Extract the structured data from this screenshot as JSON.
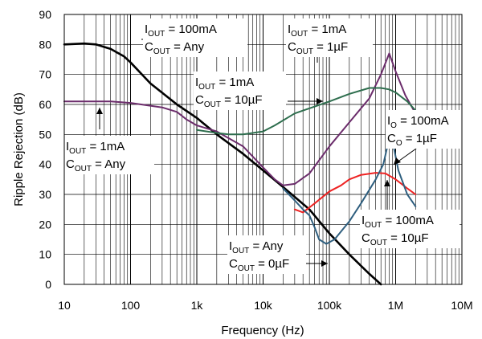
{
  "chart_data": {
    "type": "line",
    "xlabel": "Frequency (Hz)",
    "ylabel": "Ripple Rejection (dB)",
    "xscale": "log",
    "xlim": [
      10,
      10000000
    ],
    "ylim": [
      0,
      90
    ],
    "grid": true,
    "x_tick_labels": [
      "10",
      "100",
      "1k",
      "10k",
      "100k",
      "1M",
      "10M"
    ],
    "y_tick_values": [
      0,
      10,
      20,
      30,
      40,
      50,
      60,
      70,
      80,
      90
    ],
    "series": [
      {
        "color": "#000000",
        "points": [
          [
            10,
            80
          ],
          [
            20,
            80.3
          ],
          [
            30,
            80
          ],
          [
            50,
            78.5
          ],
          [
            80,
            76
          ],
          [
            100,
            74
          ],
          [
            200,
            67
          ],
          [
            500,
            60
          ],
          [
            1000,
            55.5
          ],
          [
            2000,
            50
          ],
          [
            5000,
            43.5
          ],
          [
            10000,
            38
          ],
          [
            20000,
            32.5
          ],
          [
            50000,
            25
          ],
          [
            100000,
            17
          ],
          [
            200000,
            10
          ],
          [
            400000,
            3.5
          ],
          [
            600000,
            0
          ]
        ]
      },
      {
        "color": "#6b2c6b",
        "points": [
          [
            10,
            61
          ],
          [
            50,
            61
          ],
          [
            100,
            60.5
          ],
          [
            300,
            59
          ],
          [
            500,
            57.5
          ],
          [
            700,
            55
          ],
          [
            1000,
            53
          ],
          [
            2000,
            51
          ],
          [
            5000,
            46
          ],
          [
            10000,
            39
          ],
          [
            15000,
            35
          ],
          [
            20000,
            33
          ],
          [
            30000,
            33.5
          ],
          [
            50000,
            37
          ],
          [
            100000,
            46
          ],
          [
            200000,
            54
          ],
          [
            400000,
            62
          ],
          [
            600000,
            70
          ],
          [
            800000,
            77
          ],
          [
            1000000,
            71
          ],
          [
            1400000,
            63
          ],
          [
            2000000,
            57
          ]
        ]
      },
      {
        "color": "#2e6e4e",
        "points": [
          [
            1000,
            51.5
          ],
          [
            2000,
            50.5
          ],
          [
            3000,
            50
          ],
          [
            5000,
            50
          ],
          [
            10000,
            51
          ],
          [
            15000,
            53
          ],
          [
            30000,
            57
          ],
          [
            100000,
            61
          ],
          [
            200000,
            63.5
          ],
          [
            400000,
            65.5
          ],
          [
            600000,
            65.5
          ],
          [
            800000,
            65
          ],
          [
            1000000,
            64
          ],
          [
            1500000,
            61
          ],
          [
            2000000,
            58
          ]
        ]
      },
      {
        "color": "#ee2222",
        "points": [
          [
            30000,
            25
          ],
          [
            40000,
            24
          ],
          [
            60000,
            27
          ],
          [
            100000,
            31
          ],
          [
            150000,
            33
          ],
          [
            200000,
            35
          ],
          [
            300000,
            36.5
          ],
          [
            500000,
            37.2
          ],
          [
            700000,
            37
          ],
          [
            1000000,
            35
          ],
          [
            1500000,
            32
          ],
          [
            2000000,
            30
          ]
        ]
      },
      {
        "color": "#2f5f7f",
        "points": [
          [
            20000,
            32
          ],
          [
            30000,
            28
          ],
          [
            40000,
            25
          ],
          [
            50000,
            23
          ],
          [
            60000,
            19
          ],
          [
            70000,
            15
          ],
          [
            90000,
            13.5
          ],
          [
            120000,
            15
          ],
          [
            200000,
            21
          ],
          [
            300000,
            27
          ],
          [
            500000,
            35
          ],
          [
            650000,
            40
          ],
          [
            750000,
            46
          ],
          [
            850000,
            50
          ],
          [
            950000,
            45
          ],
          [
            1100000,
            38
          ],
          [
            1500000,
            30
          ],
          [
            2000000,
            26
          ]
        ]
      }
    ],
    "annotations": [
      {
        "lines": [
          {
            "base": "I",
            "sub": "OUT",
            "rest": " = 100mA"
          },
          {
            "base": "C",
            "sub": "OUT",
            "rest": " = Any"
          }
        ]
      },
      {
        "lines": [
          {
            "base": "I",
            "sub": "OUT",
            "rest": " = 1mA"
          },
          {
            "base": "C",
            "sub": "OUT",
            "rest": " = 1µF"
          }
        ]
      },
      {
        "lines": [
          {
            "base": "I",
            "sub": "OUT",
            "rest": " = 1mA"
          },
          {
            "base": "C",
            "sub": "OUT",
            "rest": " = 10µF"
          }
        ]
      },
      {
        "lines": [
          {
            "base": "I",
            "sub": "O",
            "rest": " = 100mA"
          },
          {
            "base": "C",
            "sub": "O",
            "rest": " = 1µF"
          }
        ]
      },
      {
        "lines": [
          {
            "base": "I",
            "sub": "OUT",
            "rest": " = 1mA"
          },
          {
            "base": "C",
            "sub": "OUT",
            "rest": " = Any"
          }
        ]
      },
      {
        "lines": [
          {
            "base": "I",
            "sub": "OUT",
            "rest": " = 100mA"
          },
          {
            "base": "C",
            "sub": "OUT",
            "rest": " = 10µF"
          }
        ]
      },
      {
        "lines": [
          {
            "base": "I",
            "sub": "OUT",
            "rest": " = Any"
          },
          {
            "base": "C",
            "sub": "OUT",
            "rest": " = 0µF"
          }
        ]
      }
    ]
  }
}
